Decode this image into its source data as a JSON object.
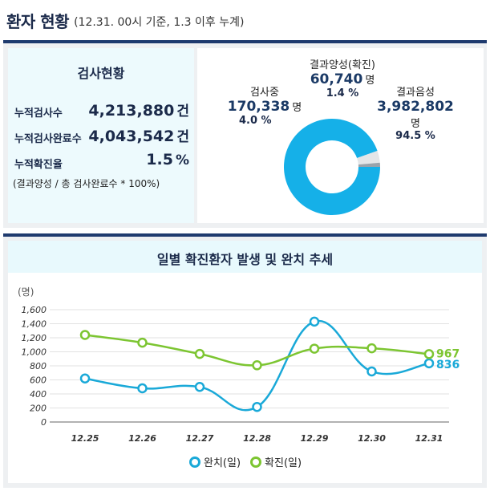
{
  "header": {
    "title": "환자 현황",
    "subtitle": "(12.31. 00시 기준, 1.3 이후 누계)"
  },
  "stats": {
    "title": "검사현황",
    "rows": [
      {
        "label": "누적검사수",
        "value": "4,213,880",
        "unit": "건"
      },
      {
        "label": "누적검사완료수",
        "value": "4,043,542",
        "unit": "건"
      },
      {
        "label": "누적확진율",
        "value": "1.5",
        "unit": "%"
      }
    ],
    "note": "(결과양성 / 총 검사완료수 * 100%)"
  },
  "donut": {
    "positive": {
      "name": "결과양성(확진)",
      "value": "60,740",
      "unit": "명",
      "pct": "1.4 %"
    },
    "testing": {
      "name": "검사중",
      "value": "170,338",
      "unit": "명",
      "pct": "4.0 %"
    },
    "negative": {
      "name": "결과음성",
      "value": "3,982,802",
      "unit": "명",
      "pct": "94.5 %"
    },
    "colors": {
      "negative": "#15b0e8",
      "testing": "#e4e6e8",
      "positive": "#9aa3ab"
    }
  },
  "chart_data": {
    "type": "line",
    "title": "일별 확진환자 발생 및 완치 추세",
    "ylabel": "(명)",
    "ylim": [
      0,
      1600
    ],
    "yticks": [
      "1,600",
      "1,400",
      "1,200",
      "1,000",
      "800",
      "600",
      "400",
      "200",
      "0"
    ],
    "grid": true,
    "x": [
      "12.25",
      "12.26",
      "12.27",
      "12.28",
      "12.29",
      "12.30",
      "12.31"
    ],
    "series": [
      {
        "name": "완치(일)",
        "color": "#1aa9d8",
        "values": [
          620,
          480,
          500,
          215,
          1430,
          720,
          836
        ]
      },
      {
        "name": "확진(일)",
        "color": "#7cc531",
        "values": [
          1240,
          1130,
          970,
          808,
          1045,
          1050,
          967
        ]
      }
    ],
    "end_labels": [
      "836",
      "967"
    ],
    "legend_position": "bottom"
  }
}
